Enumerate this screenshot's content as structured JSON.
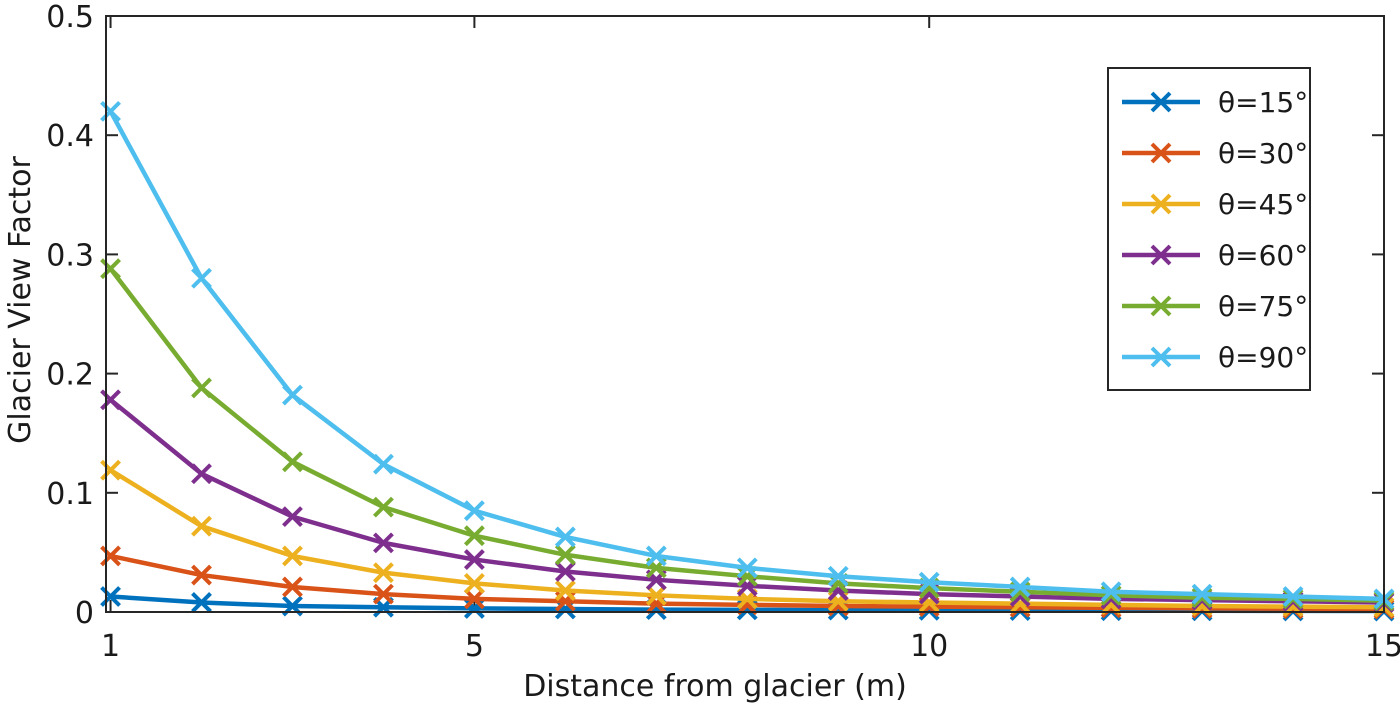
{
  "chart_data": {
    "type": "line",
    "xlabel": "Distance from glacier (m)",
    "ylabel": "Glacier View Factor",
    "xlim": [
      0.95,
      15
    ],
    "ylim": [
      0,
      0.5
    ],
    "x_ticks": [
      1,
      5,
      10,
      15
    ],
    "y_ticks": [
      0,
      0.1,
      0.2,
      0.3,
      0.4,
      0.5
    ],
    "y_tick_labels": [
      "0",
      "0.1",
      "0.2",
      "0.3",
      "0.4",
      "0.5"
    ],
    "grid": false,
    "legend_position": "top-right",
    "marker": "x",
    "x": [
      1,
      2,
      3,
      4,
      5,
      6,
      7,
      8,
      9,
      10,
      11,
      12,
      13,
      14,
      15
    ],
    "series": [
      {
        "name": "θ=15°",
        "color": "#0072BD",
        "values": [
          0.013,
          0.008,
          0.005,
          0.004,
          0.003,
          0.0025,
          0.002,
          0.0018,
          0.0016,
          0.0014,
          0.0012,
          0.0011,
          0.001,
          0.0009,
          0.0008
        ]
      },
      {
        "name": "θ=30°",
        "color": "#D95319",
        "values": [
          0.047,
          0.031,
          0.021,
          0.015,
          0.011,
          0.009,
          0.007,
          0.006,
          0.005,
          0.0045,
          0.004,
          0.0035,
          0.003,
          0.0028,
          0.0025
        ]
      },
      {
        "name": "θ=45°",
        "color": "#EDB120",
        "values": [
          0.119,
          0.072,
          0.047,
          0.033,
          0.024,
          0.018,
          0.014,
          0.011,
          0.009,
          0.008,
          0.007,
          0.006,
          0.005,
          0.0045,
          0.004
        ]
      },
      {
        "name": "θ=60°",
        "color": "#7E2F8E",
        "values": [
          0.178,
          0.116,
          0.08,
          0.058,
          0.044,
          0.034,
          0.027,
          0.022,
          0.018,
          0.015,
          0.013,
          0.011,
          0.01,
          0.009,
          0.008
        ]
      },
      {
        "name": "θ=75°",
        "color": "#77AC30",
        "values": [
          0.288,
          0.188,
          0.126,
          0.088,
          0.064,
          0.048,
          0.037,
          0.03,
          0.024,
          0.02,
          0.017,
          0.014,
          0.012,
          0.011,
          0.0095
        ]
      },
      {
        "name": "θ=90°",
        "color": "#4DBEEE",
        "values": [
          0.42,
          0.28,
          0.182,
          0.124,
          0.085,
          0.063,
          0.047,
          0.037,
          0.03,
          0.025,
          0.021,
          0.017,
          0.015,
          0.013,
          0.011
        ]
      }
    ]
  }
}
